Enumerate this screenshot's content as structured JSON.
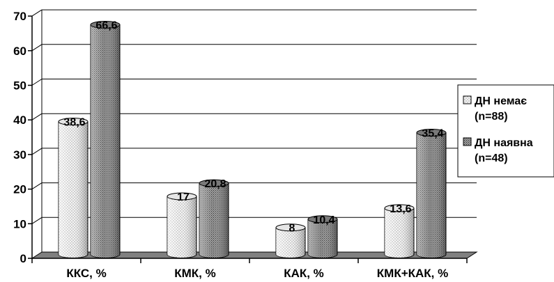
{
  "chart_data": {
    "type": "bar",
    "categories": [
      "ККС, %",
      "КМК, %",
      "КАК, %",
      "КМК+КАК, %"
    ],
    "series": [
      {
        "name": "ДН немає (n=88)",
        "legend_lines": [
          "ДН немає",
          "(n=88)"
        ],
        "values": [
          38.6,
          17,
          8,
          13.6
        ],
        "data_labels": [
          "38,6",
          "17",
          "8",
          "13,6"
        ],
        "color": "#eeeeee"
      },
      {
        "name": "ДН наявна (n=48)",
        "legend_lines": [
          "ДН наявна",
          "(n=48)"
        ],
        "values": [
          66.6,
          20.8,
          10.4,
          35.4
        ],
        "data_labels": [
          "66,6",
          "20,8",
          "10,4",
          "35,4"
        ],
        "color": "#8a8a8a"
      }
    ],
    "y_ticks": [
      "0",
      "10",
      "20",
      "30",
      "40",
      "50",
      "60",
      "70"
    ],
    "ylim": [
      0,
      70
    ],
    "grid": true,
    "legend_position": "right",
    "title": "",
    "xlabel": "",
    "ylabel": ""
  }
}
